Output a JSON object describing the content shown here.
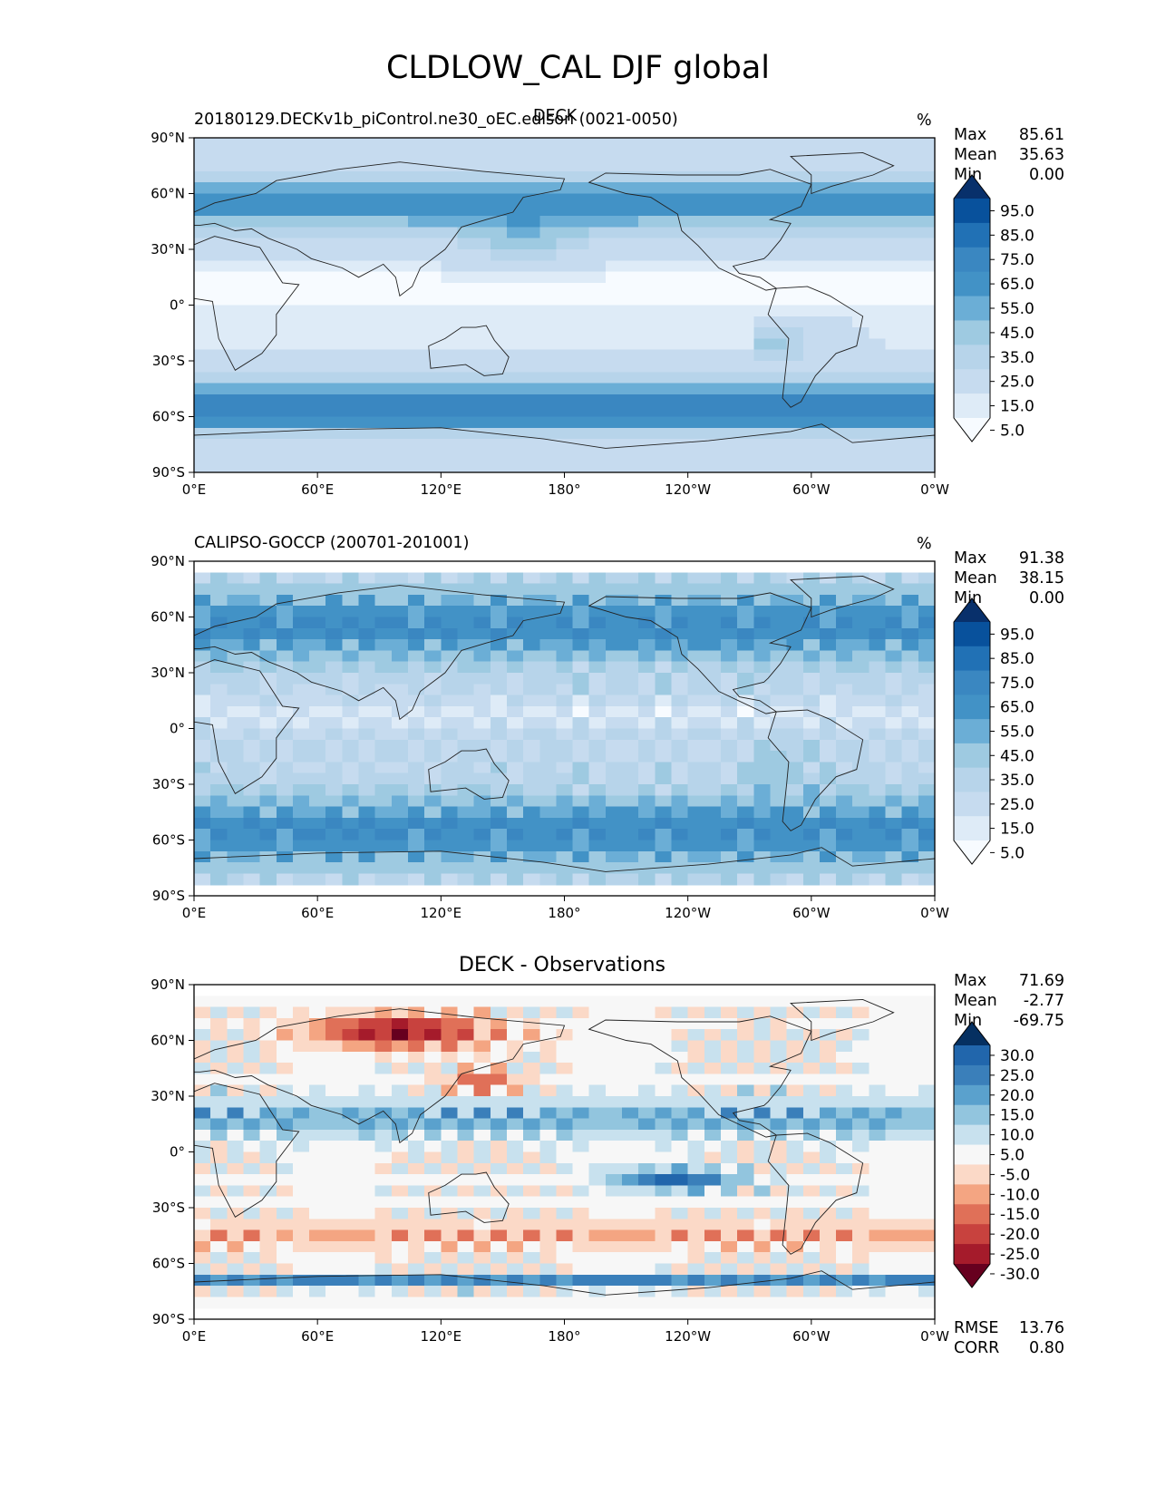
{
  "suptitle": "CLDLOW_CAL DJF global",
  "chart_data": [
    {
      "type": "heatmap",
      "title_left": "20180129.DECKv1b_piControl.ne30_oEC.edison (0021-0050)",
      "title_center": "DECK",
      "units": "%",
      "stats": {
        "max": "85.61",
        "mean": "35.63",
        "min": "0.00"
      },
      "colormap": "Blues",
      "colorbar_ticks": [
        "95.0",
        "85.0",
        "75.0",
        "65.0",
        "55.0",
        "45.0",
        "35.0",
        "25.0",
        "15.0",
        "5.0"
      ],
      "colorbar_colors": [
        "#08306b",
        "#08519c",
        "#2171b5",
        "#3a87c1",
        "#4292c6",
        "#6baed6",
        "#9ecae1",
        "#b7d4ea",
        "#c6dbef",
        "#deebf7",
        "#f7fbff"
      ],
      "xticks": [
        "0°E",
        "60°E",
        "120°E",
        "180°",
        "120°W",
        "60°W",
        "0°W"
      ],
      "yticks": [
        "90°N",
        "60°N",
        "30°N",
        "0°",
        "30°S",
        "60°S",
        "90°S"
      ],
      "xlim": [
        0,
        360
      ],
      "ylim": [
        -90,
        90
      ]
    },
    {
      "type": "heatmap",
      "title_left": "CALIPSO-GOCCP (200701-201001)",
      "units": "%",
      "stats": {
        "max": "91.38",
        "mean": "38.15",
        "min": "0.00"
      },
      "colormap": "Blues",
      "colorbar_ticks": [
        "95.0",
        "85.0",
        "75.0",
        "65.0",
        "55.0",
        "45.0",
        "35.0",
        "25.0",
        "15.0",
        "5.0"
      ],
      "colorbar_colors": [
        "#08306b",
        "#08519c",
        "#2171b5",
        "#3a87c1",
        "#4292c6",
        "#6baed6",
        "#9ecae1",
        "#b7d4ea",
        "#c6dbef",
        "#deebf7",
        "#f7fbff"
      ],
      "xticks": [
        "0°E",
        "60°E",
        "120°E",
        "180°",
        "120°W",
        "60°W",
        "0°W"
      ],
      "yticks": [
        "90°N",
        "60°N",
        "30°N",
        "0°",
        "30°S",
        "60°S",
        "90°S"
      ],
      "xlim": [
        0,
        360
      ],
      "ylim": [
        -90,
        90
      ]
    },
    {
      "type": "heatmap",
      "title_center": "DECK - Observations",
      "stats": {
        "max": "71.69",
        "mean": "-2.77",
        "min": "-69.75"
      },
      "metrics": {
        "rmse": "13.76",
        "corr": "0.80"
      },
      "colormap": "RdBu",
      "colorbar_ticks": [
        "30.0",
        "25.0",
        "20.0",
        "15.0",
        "10.0",
        "5.0",
        "-5.0",
        "-10.0",
        "-15.0",
        "-20.0",
        "-25.0",
        "-30.0"
      ],
      "colorbar_colors": [
        "#053061",
        "#2166ac",
        "#3a7fba",
        "#5aa1cd",
        "#92c5de",
        "#c8e1ee",
        "#f7f7f7",
        "#fbd9c7",
        "#f4a582",
        "#e07058",
        "#c8423e",
        "#a51b2b",
        "#67001f"
      ],
      "xticks": [
        "0°E",
        "60°E",
        "120°E",
        "180°",
        "120°W",
        "60°W",
        "0°W"
      ],
      "yticks": [
        "90°N",
        "60°N",
        "30°N",
        "0°",
        "30°S",
        "60°S",
        "90°S"
      ],
      "xlim": [
        0,
        360
      ],
      "ylim": [
        -90,
        90
      ]
    }
  ],
  "stat_labels": {
    "max": "Max",
    "mean": "Mean",
    "min": "Min",
    "rmse": "RMSE",
    "corr": "CORR"
  }
}
